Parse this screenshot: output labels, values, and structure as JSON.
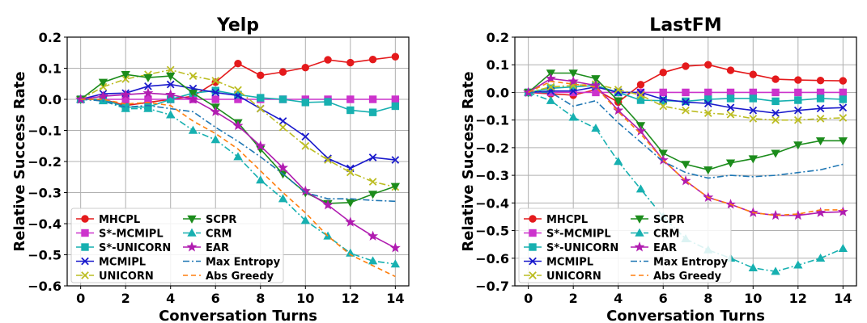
{
  "chart_data": [
    {
      "type": "line",
      "title": "Yelp",
      "xlabel": "Conversation Turns",
      "ylabel": "Relative Success Rate",
      "xlim": [
        -0.6,
        14.6
      ],
      "ylim": [
        -0.6,
        0.2
      ],
      "xticks": [
        0,
        2,
        4,
        6,
        8,
        10,
        12,
        14
      ],
      "xtick_labels": [
        "0",
        "2",
        "4",
        "6",
        "8",
        "10",
        "12",
        "14"
      ],
      "yticks": [
        -0.6,
        -0.5,
        -0.4,
        -0.3,
        -0.2,
        -0.1,
        0.0,
        0.1,
        0.2
      ],
      "ytick_labels": [
        "−0.6",
        "−0.5",
        "−0.4",
        "−0.3",
        "−0.2",
        "−0.1",
        "0.0",
        "0.1",
        "0.2"
      ],
      "grid": true,
      "legend_location": "lower-left",
      "x": [
        0,
        1,
        2,
        3,
        4,
        5,
        6,
        7,
        8,
        9,
        10,
        11,
        12,
        13,
        14
      ],
      "series": [
        {
          "name": "MHCPL",
          "color": "#e41a1c",
          "marker": "circle",
          "dash": "solid",
          "values": [
            0.0,
            0.0,
            -0.02,
            -0.01,
            0.0,
            0.01,
            0.055,
            0.115,
            0.077,
            0.088,
            0.102,
            0.127,
            0.118,
            0.128,
            0.137
          ]
        },
        {
          "name": "S*-MCMIPL",
          "color": "#cc33cc",
          "marker": "square",
          "dash": "solid",
          "values": [
            0.0,
            0.0,
            0.0,
            0.0,
            0.0,
            0.0,
            0.0,
            0.0,
            0.0,
            0.0,
            0.0,
            0.0,
            0.0,
            0.0,
            0.0
          ]
        },
        {
          "name": "S*-UNICORN",
          "color": "#17b0b0",
          "marker": "square",
          "dash": "solid",
          "values": [
            0.0,
            0.0,
            -0.025,
            -0.025,
            0.0,
            0.02,
            0.028,
            0.015,
            0.005,
            0.0,
            -0.01,
            -0.008,
            -0.035,
            -0.042,
            -0.022
          ]
        },
        {
          "name": "MCMIPL",
          "color": "#1a1acc",
          "marker": "x",
          "dash": "solid",
          "values": [
            0.0,
            0.018,
            0.02,
            0.042,
            0.048,
            0.035,
            0.022,
            0.012,
            -0.03,
            -0.07,
            -0.12,
            -0.19,
            -0.222,
            -0.187,
            -0.195
          ]
        },
        {
          "name": "UNICORN",
          "color": "#bcbd22",
          "marker": "x",
          "dash": "dashdot",
          "values": [
            0.0,
            0.04,
            0.065,
            0.08,
            0.095,
            0.075,
            0.06,
            0.03,
            -0.03,
            -0.09,
            -0.15,
            -0.195,
            -0.235,
            -0.265,
            -0.282
          ]
        },
        {
          "name": "SCPR",
          "color": "#1c8c1c",
          "marker": "triangle-down",
          "dash": "solid",
          "values": [
            0.0,
            0.055,
            0.08,
            0.07,
            0.075,
            0.02,
            -0.025,
            -0.075,
            -0.16,
            -0.24,
            -0.3,
            -0.335,
            -0.332,
            -0.305,
            -0.28
          ]
        },
        {
          "name": "CRM",
          "color": "#17b0b0",
          "marker": "triangle-up",
          "dash": "dashdot",
          "values": [
            0.0,
            -0.005,
            -0.03,
            -0.03,
            -0.05,
            -0.1,
            -0.13,
            -0.185,
            -0.26,
            -0.32,
            -0.39,
            -0.44,
            -0.495,
            -0.52,
            -0.53
          ]
        },
        {
          "name": "EAR",
          "color": "#b01cb0",
          "marker": "star",
          "dash": "solid",
          "values": [
            0.0,
            0.01,
            0.015,
            0.02,
            0.015,
            0.0,
            -0.04,
            -0.085,
            -0.15,
            -0.22,
            -0.295,
            -0.34,
            -0.395,
            -0.44,
            -0.478
          ]
        },
        {
          "name": "Max Entropy",
          "color": "#1f77b4",
          "marker": "none",
          "dash": "dashdot",
          "values": [
            0.0,
            -0.005,
            -0.025,
            -0.02,
            -0.03,
            -0.04,
            -0.09,
            -0.135,
            -0.185,
            -0.24,
            -0.3,
            -0.32,
            -0.32,
            -0.325,
            -0.328
          ]
        },
        {
          "name": "Abs Greedy",
          "color": "#ff7f0e",
          "marker": "none",
          "dash": "dashed",
          "values": [
            0.0,
            0.0,
            -0.015,
            -0.01,
            -0.02,
            -0.07,
            -0.11,
            -0.16,
            -0.23,
            -0.3,
            -0.365,
            -0.44,
            -0.5,
            -0.535,
            -0.57
          ]
        }
      ]
    },
    {
      "type": "line",
      "title": "LastFM",
      "xlabel": "Conversation Turns",
      "ylabel": "Relative Success Rate",
      "xlim": [
        -0.6,
        14.6
      ],
      "ylim": [
        -0.7,
        0.2
      ],
      "xticks": [
        0,
        2,
        4,
        6,
        8,
        10,
        12,
        14
      ],
      "xtick_labels": [
        "0",
        "2",
        "4",
        "6",
        "8",
        "10",
        "12",
        "14"
      ],
      "yticks": [
        -0.7,
        -0.6,
        -0.5,
        -0.4,
        -0.3,
        -0.2,
        -0.1,
        0.0,
        0.1,
        0.2
      ],
      "ytick_labels": [
        "−0.7",
        "−0.6",
        "−0.5",
        "−0.4",
        "−0.3",
        "−0.2",
        "−0.1",
        "0.0",
        "0.1",
        "0.2"
      ],
      "grid": true,
      "legend_location": "lower-left",
      "x": [
        0,
        1,
        2,
        3,
        4,
        5,
        6,
        7,
        8,
        9,
        10,
        11,
        12,
        13,
        14
      ],
      "series": [
        {
          "name": "MHCPL",
          "color": "#e41a1c",
          "marker": "circle",
          "dash": "solid",
          "values": [
            0.0,
            -0.005,
            -0.01,
            0.01,
            -0.035,
            0.028,
            0.072,
            0.095,
            0.1,
            0.08,
            0.065,
            0.048,
            0.045,
            0.043,
            0.042
          ]
        },
        {
          "name": "S*-MCMIPL",
          "color": "#cc33cc",
          "marker": "square",
          "dash": "solid",
          "values": [
            0.0,
            0.0,
            0.0,
            0.0,
            0.0,
            0.0,
            0.0,
            0.0,
            0.0,
            0.0,
            0.0,
            0.0,
            0.0,
            0.0,
            0.0
          ]
        },
        {
          "name": "S*-UNICORN",
          "color": "#17b0b0",
          "marker": "square",
          "dash": "solid",
          "values": [
            0.0,
            0.015,
            0.02,
            0.025,
            0.0,
            -0.028,
            -0.03,
            -0.032,
            -0.025,
            -0.022,
            -0.022,
            -0.032,
            -0.028,
            -0.022,
            -0.025
          ]
        },
        {
          "name": "MCMIPL",
          "color": "#1a1acc",
          "marker": "x",
          "dash": "solid",
          "values": [
            0.0,
            0.005,
            0.005,
            0.02,
            0.0,
            0.0,
            -0.025,
            -0.035,
            -0.04,
            -0.055,
            -0.065,
            -0.075,
            -0.065,
            -0.058,
            -0.055
          ]
        },
        {
          "name": "UNICORN",
          "color": "#bcbd22",
          "marker": "x",
          "dash": "dashdot",
          "values": [
            0.0,
            0.02,
            0.025,
            0.03,
            0.01,
            -0.01,
            -0.05,
            -0.065,
            -0.075,
            -0.08,
            -0.095,
            -0.1,
            -0.1,
            -0.095,
            -0.092
          ]
        },
        {
          "name": "SCPR",
          "color": "#1c8c1c",
          "marker": "triangle-down",
          "dash": "solid",
          "values": [
            0.0,
            0.07,
            0.07,
            0.05,
            -0.03,
            -0.12,
            -0.22,
            -0.26,
            -0.28,
            -0.255,
            -0.24,
            -0.22,
            -0.19,
            -0.175,
            -0.175
          ]
        },
        {
          "name": "CRM",
          "color": "#17b0b0",
          "marker": "triangle-up",
          "dash": "dashdot",
          "values": [
            0.0,
            -0.03,
            -0.09,
            -0.13,
            -0.25,
            -0.35,
            -0.45,
            -0.53,
            -0.57,
            -0.6,
            -0.635,
            -0.648,
            -0.625,
            -0.6,
            -0.565
          ]
        },
        {
          "name": "EAR",
          "color": "#b01cb0",
          "marker": "star",
          "dash": "solid",
          "values": [
            0.0,
            0.05,
            0.04,
            0.025,
            -0.065,
            -0.14,
            -0.245,
            -0.32,
            -0.38,
            -0.405,
            -0.435,
            -0.445,
            -0.445,
            -0.435,
            -0.432
          ]
        },
        {
          "name": "Max Entropy",
          "color": "#1f77b4",
          "marker": "none",
          "dash": "dashdot",
          "values": [
            0.0,
            0.0,
            -0.05,
            -0.03,
            -0.11,
            -0.18,
            -0.25,
            -0.29,
            -0.31,
            -0.3,
            -0.305,
            -0.3,
            -0.29,
            -0.28,
            -0.26
          ]
        },
        {
          "name": "Abs Greedy",
          "color": "#ff7f0e",
          "marker": "none",
          "dash": "dashed",
          "values": [
            0.0,
            0.04,
            0.03,
            0.02,
            -0.07,
            -0.15,
            -0.245,
            -0.32,
            -0.38,
            -0.405,
            -0.435,
            -0.445,
            -0.44,
            -0.425,
            -0.425
          ]
        }
      ]
    }
  ]
}
